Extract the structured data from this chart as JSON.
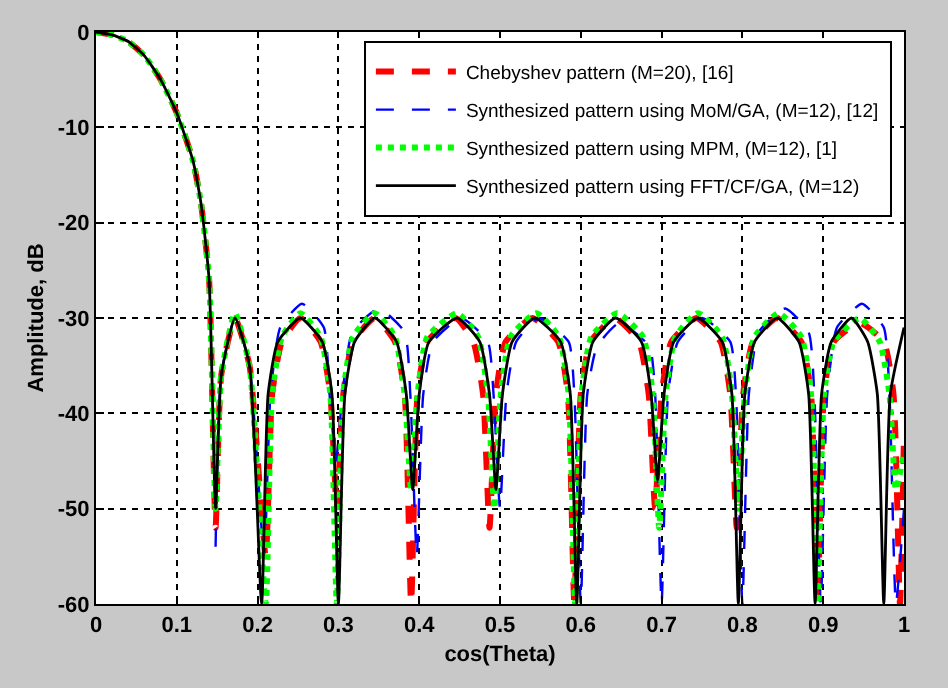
{
  "chart_data": {
    "type": "line",
    "xlabel": "cos(Theta)",
    "ylabel": "Amplitude, dB",
    "xlim": [
      0,
      1
    ],
    "xticks": [
      0,
      0.1,
      0.2,
      0.3,
      0.4,
      0.5,
      0.6,
      0.7,
      0.8,
      0.9,
      1
    ],
    "ylim": [
      -60,
      0
    ],
    "yticks": [
      -60,
      -50,
      -40,
      -30,
      -20,
      -10,
      0
    ],
    "grid": true,
    "legend": "top right",
    "marker": "none",
    "series": [
      {
        "name": "Chebyshev pattern (M=20), [16]",
        "color": "#ff0000",
        "line_style": "dashed",
        "x": [
          0,
          0.02,
          0.04,
          0.06,
          0.08,
          0.1,
          0.12,
          0.13,
          0.14,
          0.148,
          0.155,
          0.172,
          0.19,
          0.21,
          0.218,
          0.23,
          0.253,
          0.278,
          0.29,
          0.298,
          0.306,
          0.318,
          0.345,
          0.37,
          0.382,
          0.39,
          0.398,
          0.41,
          0.445,
          0.467,
          0.479,
          0.487,
          0.495,
          0.507,
          0.54,
          0.572,
          0.584,
          0.592,
          0.6,
          0.612,
          0.642,
          0.672,
          0.684,
          0.692,
          0.7,
          0.712,
          0.743,
          0.773,
          0.785,
          0.793,
          0.801,
          0.813,
          0.843,
          0.873,
          0.885,
          0.893,
          0.901,
          0.913,
          0.945,
          0.975,
          0.987,
          0.995,
          1.0
        ],
        "values": [
          0,
          -0.3,
          -1,
          -2.5,
          -5,
          -8.5,
          -13.5,
          -18,
          -26,
          -52,
          -36,
          -30,
          -35,
          -55,
          -38,
          -32.5,
          -30,
          -32.5,
          -38,
          -50,
          -38,
          -32.5,
          -30,
          -32.5,
          -38,
          -60,
          -38,
          -32.5,
          -30,
          -32.5,
          -38,
          -52,
          -38,
          -32.5,
          -30,
          -32.5,
          -38,
          -60,
          -38,
          -32.5,
          -30,
          -32.5,
          -38,
          -50,
          -38,
          -32.5,
          -30,
          -32.5,
          -38,
          -52,
          -38,
          -32.5,
          -30,
          -32.5,
          -38,
          -60,
          -38,
          -32.5,
          -30.5,
          -32.5,
          -38,
          -60,
          -42
        ]
      },
      {
        "name": "Synthesized pattern using MoM/GA, (M=12), [12]",
        "color": "#0000ff",
        "line_style": "dashed",
        "x": [
          0.148,
          0.155,
          0.172,
          0.19,
          0.208,
          0.216,
          0.228,
          0.255,
          0.282,
          0.289,
          0.297,
          0.305,
          0.317,
          0.35,
          0.382,
          0.389,
          0.397,
          0.405,
          0.417,
          0.452,
          0.485,
          0.492,
          0.5,
          0.508,
          0.52,
          0.548,
          0.585,
          0.592,
          0.6,
          0.608,
          0.62,
          0.648,
          0.685,
          0.692,
          0.7,
          0.708,
          0.72,
          0.75,
          0.785,
          0.792,
          0.8,
          0.808,
          0.82,
          0.853,
          0.882,
          0.889,
          0.897,
          0.905,
          0.917,
          0.948,
          0.975,
          0.982,
          0.99,
          1.0
        ],
        "values": [
          -54,
          -36,
          -30,
          -35,
          -55,
          -38,
          -31,
          -28.5,
          -31,
          -38,
          -45,
          -38,
          -31.5,
          -29,
          -31.5,
          -38,
          -55,
          -38,
          -32.5,
          -30,
          -32.5,
          -38,
          -50,
          -38,
          -32.5,
          -30,
          -32.5,
          -38,
          -60,
          -38,
          -33,
          -30.5,
          -33,
          -38,
          -60,
          -38,
          -32.5,
          -30,
          -32.5,
          -38,
          -60,
          -38,
          -31.5,
          -29,
          -31.5,
          -38,
          -60,
          -38,
          -31,
          -28.5,
          -31,
          -38,
          -60,
          -50
        ]
      },
      {
        "name": "Synthesized pattern using MPM, (M=12), [1]",
        "color": "#00ff00",
        "line_style": "dotted",
        "x": [
          0,
          0.02,
          0.04,
          0.06,
          0.08,
          0.1,
          0.12,
          0.13,
          0.14,
          0.148,
          0.155,
          0.172,
          0.19,
          0.21,
          0.218,
          0.23,
          0.253,
          0.278,
          0.29,
          0.298,
          0.306,
          0.318,
          0.345,
          0.37,
          0.382,
          0.39,
          0.398,
          0.41,
          0.447,
          0.473,
          0.485,
          0.493,
          0.501,
          0.513,
          0.545,
          0.573,
          0.585,
          0.593,
          0.601,
          0.613,
          0.645,
          0.677,
          0.689,
          0.697,
          0.705,
          0.717,
          0.745,
          0.775,
          0.787,
          0.795,
          0.803,
          0.815,
          0.845,
          0.873,
          0.885,
          0.893,
          0.901,
          0.913,
          0.945,
          0.97,
          0.982,
          0.99,
          1.0
        ],
        "values": [
          0,
          -0.3,
          -1,
          -2.5,
          -5,
          -8.5,
          -13.5,
          -18,
          -26,
          -50,
          -36,
          -29.5,
          -35,
          -60,
          -38,
          -32,
          -29.5,
          -32,
          -38,
          -60,
          -38,
          -32,
          -29.5,
          -32,
          -38,
          -48,
          -38,
          -32,
          -29.5,
          -32,
          -38,
          -50,
          -38,
          -32,
          -29.5,
          -32,
          -38,
          -60,
          -38,
          -32,
          -29.5,
          -32,
          -38,
          -52,
          -38,
          -32,
          -29.5,
          -32,
          -38,
          -50,
          -38,
          -32,
          -29.5,
          -32,
          -38,
          -60,
          -38,
          -32.5,
          -30,
          -32.5,
          -38,
          -48,
          -44
        ]
      },
      {
        "name": "Synthesized pattern using FFT/CF/GA, (M=12)",
        "color": "#000000",
        "line_style": "solid",
        "x": [
          0,
          0.02,
          0.04,
          0.06,
          0.08,
          0.1,
          0.12,
          0.13,
          0.14,
          0.148,
          0.155,
          0.172,
          0.19,
          0.205,
          0.213,
          0.225,
          0.253,
          0.28,
          0.292,
          0.3,
          0.308,
          0.32,
          0.345,
          0.372,
          0.384,
          0.392,
          0.4,
          0.412,
          0.447,
          0.475,
          0.487,
          0.495,
          0.503,
          0.515,
          0.543,
          0.575,
          0.587,
          0.595,
          0.603,
          0.615,
          0.643,
          0.675,
          0.687,
          0.695,
          0.703,
          0.715,
          0.745,
          0.775,
          0.787,
          0.795,
          0.803,
          0.815,
          0.843,
          0.87,
          0.882,
          0.89,
          0.898,
          0.91,
          0.935,
          0.955,
          0.967,
          0.975,
          0.983,
          1.0
        ],
        "values": [
          0,
          -0.3,
          -1,
          -2.5,
          -5,
          -8.5,
          -13.5,
          -18,
          -26,
          -50,
          -36,
          -30,
          -35,
          -60,
          -38,
          -32.5,
          -30,
          -32.5,
          -38,
          -60,
          -38,
          -32.5,
          -30,
          -32.5,
          -38,
          -48,
          -38,
          -32.5,
          -30,
          -32.5,
          -38,
          -48,
          -38,
          -32.5,
          -30,
          -32.5,
          -38,
          -60,
          -38,
          -32.5,
          -30,
          -32.5,
          -38,
          -47,
          -38,
          -32.5,
          -30,
          -32.5,
          -38,
          -60,
          -38,
          -32.5,
          -30,
          -32.5,
          -38,
          -60,
          -38,
          -32.5,
          -30,
          -32.5,
          -38,
          -60,
          -38,
          -31
        ]
      }
    ]
  }
}
